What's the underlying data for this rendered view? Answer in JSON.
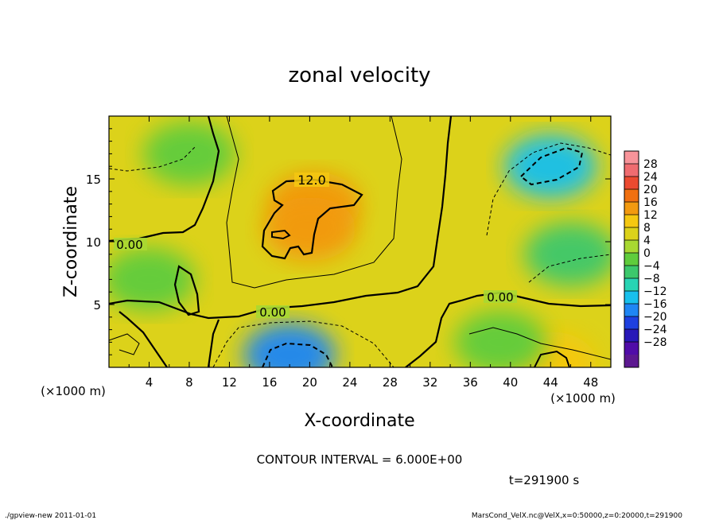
{
  "chart_data": {
    "type": "heatmap",
    "title": "zonal velocity",
    "xlabel": "X-coordinate",
    "ylabel": "Z-coordinate",
    "x_unit": "(×1000 m)",
    "y_unit": "(×1000 m)",
    "xlim": [
      0,
      50
    ],
    "ylim": [
      0,
      20
    ],
    "x_ticks": [
      "4",
      "8",
      "12",
      "16",
      "20",
      "24",
      "28",
      "32",
      "36",
      "40",
      "44",
      "48"
    ],
    "y_ticks": [
      "5",
      "10",
      "15"
    ],
    "colorbar": {
      "labels": [
        "28",
        "24",
        "20",
        "16",
        "12",
        "8",
        "4",
        "0",
        "−4",
        "−8",
        "−12",
        "−16",
        "−20",
        "−24",
        "−28"
      ],
      "colors": [
        "#f8949a",
        "#f06c70",
        "#ec4a30",
        "#f07010",
        "#f29a10",
        "#f5c811",
        "#dcd21a",
        "#a8d832",
        "#5fcc3c",
        "#3cc86c",
        "#28d4b4",
        "#18c0ec",
        "#1f86f4",
        "#1e40e0",
        "#2818b8",
        "#500ca8",
        "#5c1890"
      ]
    },
    "contour_labels": [
      "12.0",
      "0.00",
      "0.00",
      "0.00"
    ],
    "contour_interval": "CONTOUR INTERVAL = 6.000E+00",
    "time": "t=291900 s",
    "anomalies": [
      {
        "x": 20.5,
        "z": 13,
        "value": 16
      },
      {
        "x": 20,
        "z": 11,
        "value": 14
      },
      {
        "x": 44,
        "z": 16,
        "value": -12
      },
      {
        "x": 18,
        "z": 1,
        "value": -16
      },
      {
        "x": 44,
        "z": 0.3,
        "value": 12
      },
      {
        "x": 8,
        "z": 17,
        "value": -3
      },
      {
        "x": 46,
        "z": 9,
        "value": -5
      },
      {
        "x": 4,
        "z": 7,
        "value": -2
      },
      {
        "x": 39,
        "z": 2,
        "value": -3
      }
    ],
    "base_value": 6
  },
  "footer": {
    "left": "./gpview-new  2011-01-01",
    "right": "MarsCond_VelX.nc@VelX,x=0:50000,z=0:20000,t=291900"
  }
}
